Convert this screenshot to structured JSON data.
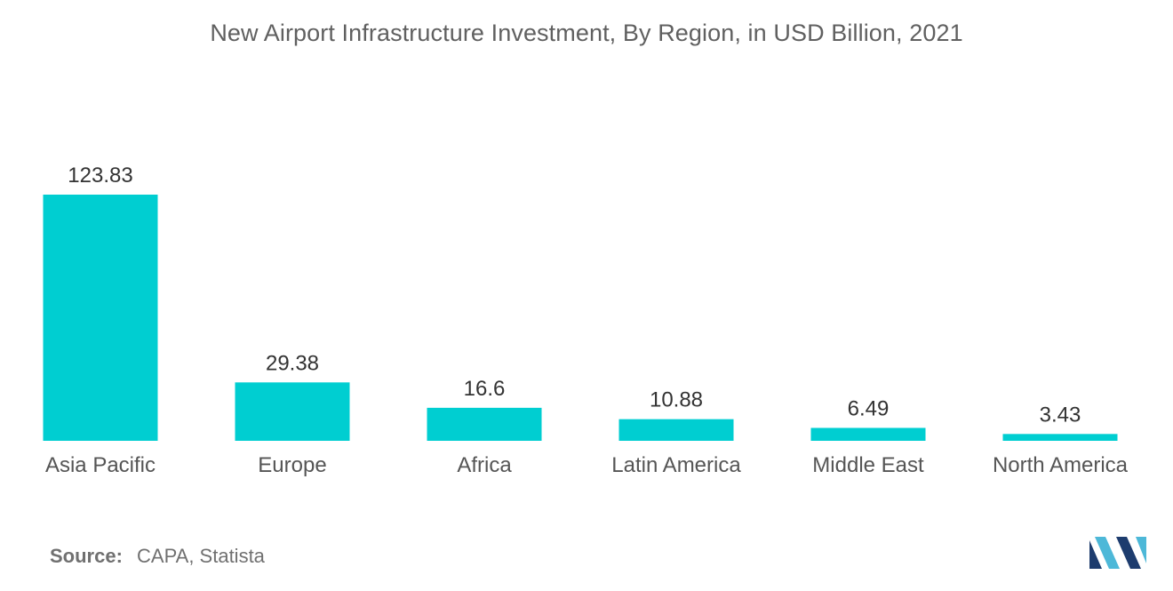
{
  "chart_data": {
    "type": "bar",
    "title": "New Airport Infrastructure Investment, By Region, in USD Billion, 2021",
    "categories": [
      "Asia Pacific",
      "Europe",
      "Africa",
      "Latin America",
      "Middle East",
      "North America"
    ],
    "values": [
      123.83,
      29.38,
      16.6,
      10.88,
      6.49,
      3.43
    ],
    "value_labels": [
      "123.83",
      "29.38",
      "16.6",
      "10.88",
      "6.49",
      "3.43"
    ],
    "xlabel": "",
    "ylabel": "",
    "ylim": [
      0,
      123.83
    ],
    "grid": false,
    "bar_color": "#00CED1"
  },
  "footer": {
    "source_label": "Source:",
    "source_text": "CAPA, Statista"
  },
  "logo": {
    "icon": "mordor-intelligence-logo-icon",
    "color_dark": "#1D3C6E",
    "color_light": "#4DB8D8"
  }
}
